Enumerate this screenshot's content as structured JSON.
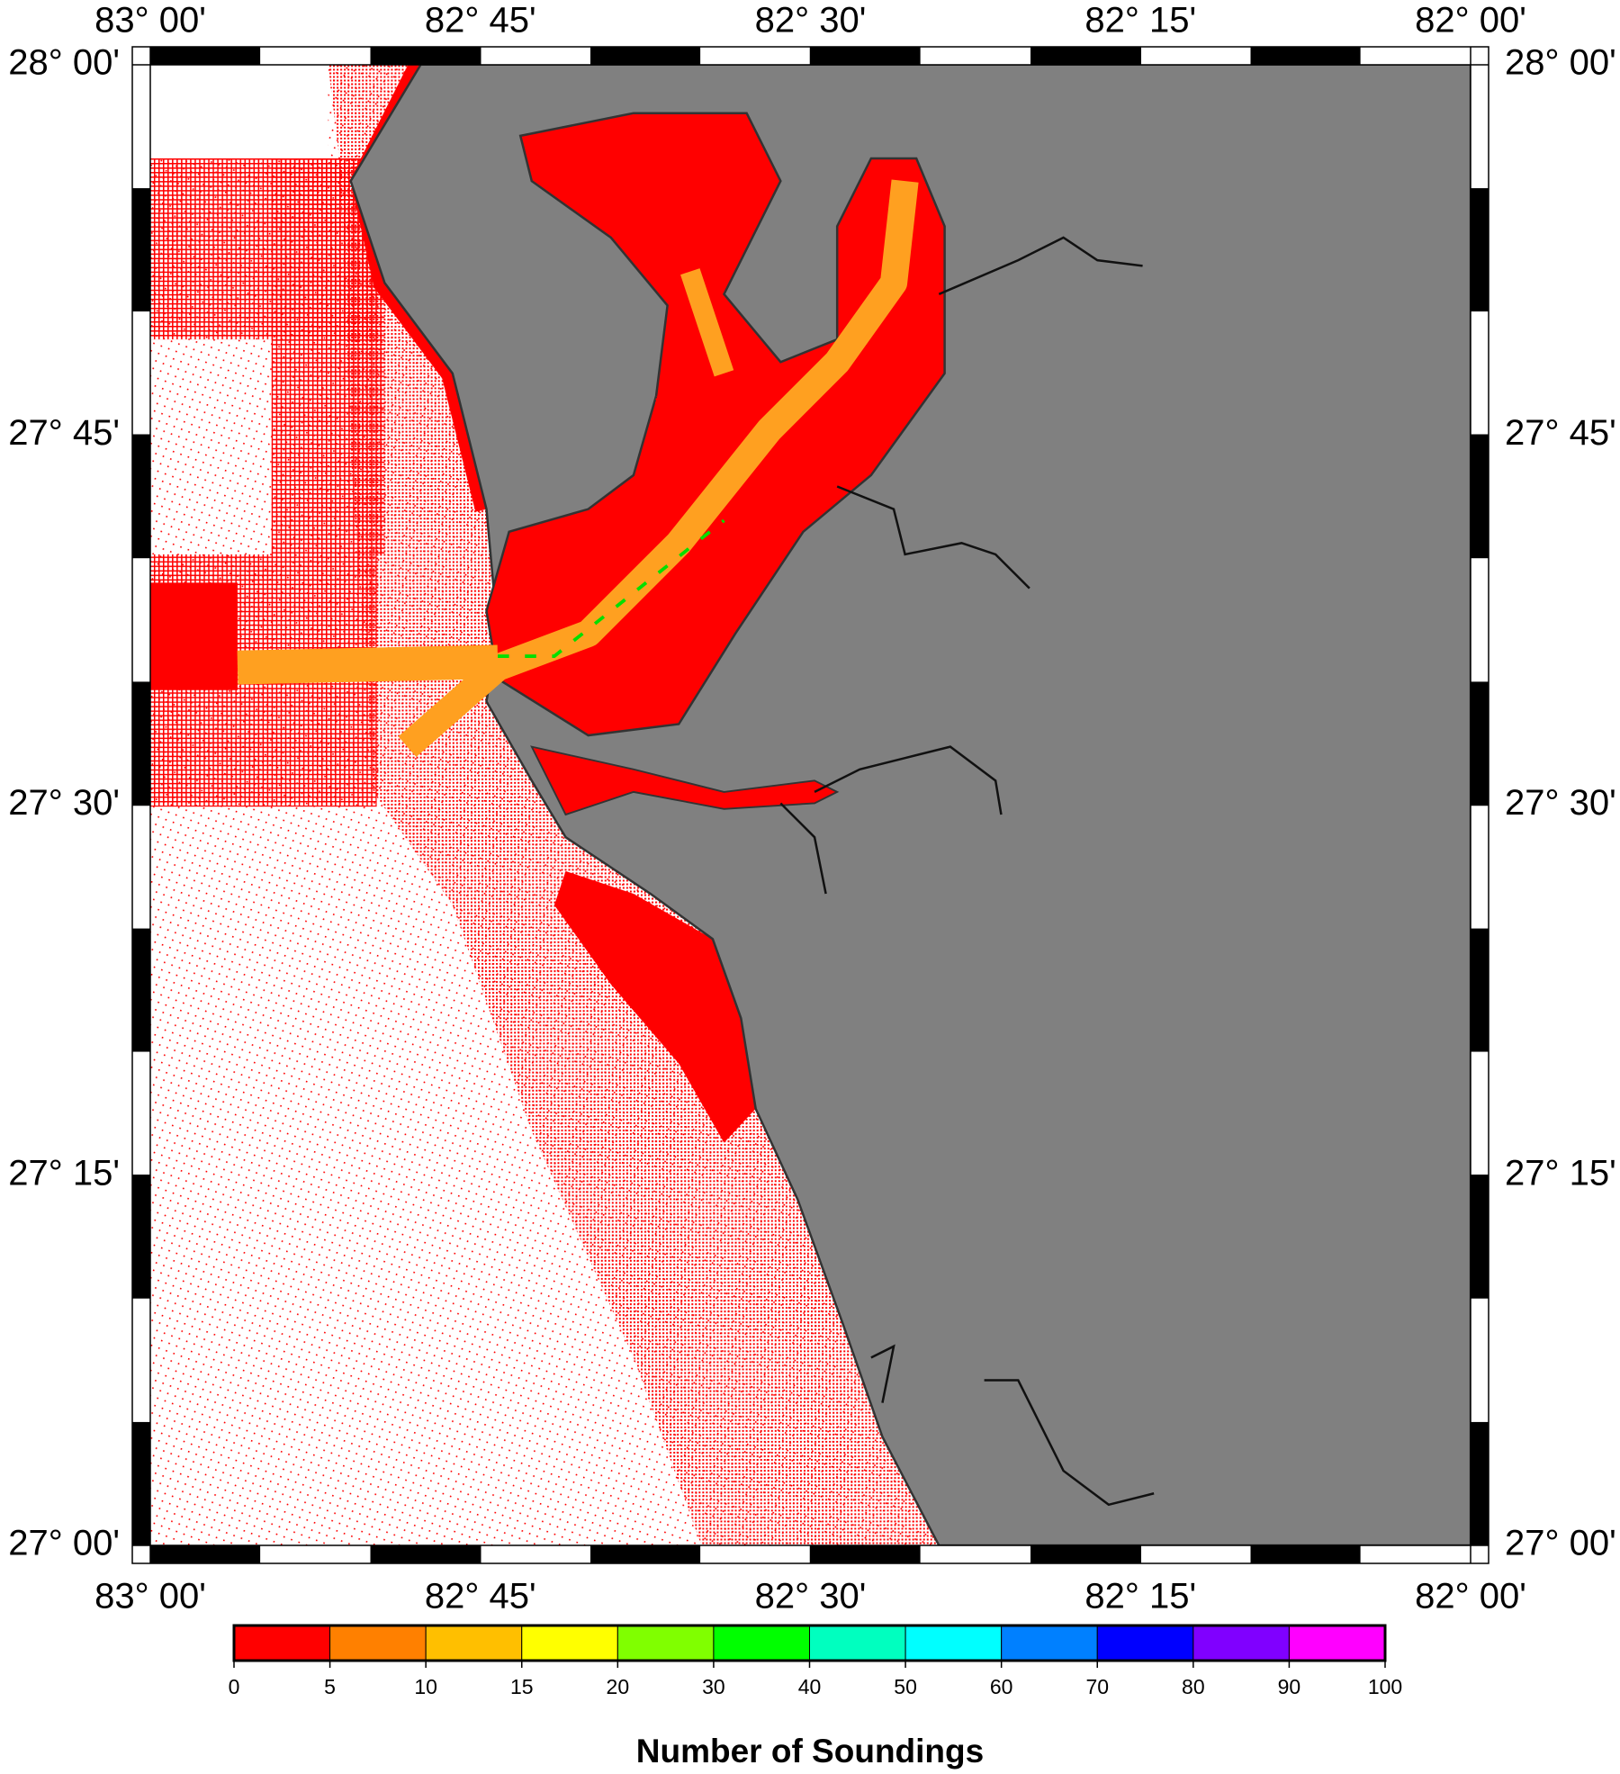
{
  "map": {
    "lonlim": [
      -83,
      -82
    ],
    "latlim": [
      27,
      28
    ],
    "lon_ticks": [
      {
        "value": -83,
        "label": "83° 00'"
      },
      {
        "value": -82.75,
        "label": "82° 45'"
      },
      {
        "value": -82.5,
        "label": "82° 30'"
      },
      {
        "value": -82.25,
        "label": "82° 15'"
      },
      {
        "value": -82,
        "label": "82° 00'"
      }
    ],
    "lat_ticks": [
      {
        "value": 28,
        "label": "28° 00'"
      },
      {
        "value": 27.75,
        "label": "27° 45'"
      },
      {
        "value": 27.5,
        "label": "27° 30'"
      },
      {
        "value": 27.25,
        "label": "27° 15'"
      },
      {
        "value": 27,
        "label": "27° 00'"
      }
    ]
  },
  "colorbar": {
    "label": "Number of Soundings",
    "ticks": [
      0,
      5,
      10,
      15,
      20,
      30,
      40,
      50,
      60,
      70,
      80,
      90,
      100
    ],
    "colors": [
      "#ff0000",
      "#ff8000",
      "#ffbf00",
      "#ffff00",
      "#80ff00",
      "#00ff00",
      "#00ffbf",
      "#00ffff",
      "#0080ff",
      "#0000ff",
      "#8000ff",
      "#ff00ff"
    ]
  }
}
